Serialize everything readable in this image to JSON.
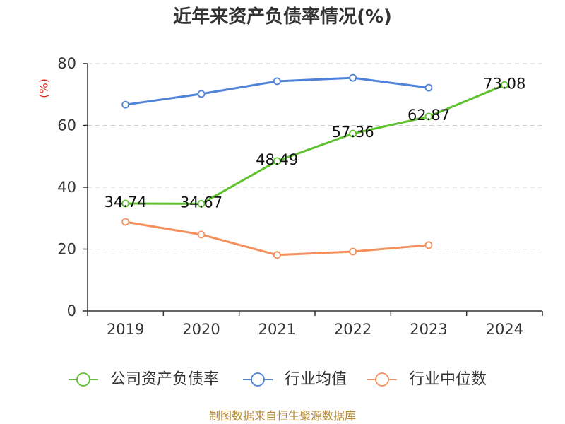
{
  "footer": "制图数据来自恒生聚源数据库",
  "colors": {
    "axis": "#333333",
    "grid": "#cccccc",
    "ylabel": "#e02b20",
    "footer": "#b38a35",
    "marker_fill": "#ffffff"
  },
  "chart_data": {
    "type": "line",
    "title": "近年来资产负债率情况(%)",
    "ylabel": "(%)",
    "categories": [
      "2019",
      "2020",
      "2021",
      "2022",
      "2023",
      "2024"
    ],
    "ylim": [
      0,
      80
    ],
    "yticks": [
      0,
      20,
      40,
      60,
      80
    ],
    "grid": true,
    "legend_position": "bottom",
    "series": [
      {
        "name": "公司资产负债率",
        "color": "#5ec22e",
        "data_labels": true,
        "values": [
          34.74,
          34.67,
          48.49,
          57.36,
          62.87,
          73.08
        ]
      },
      {
        "name": "行业均值",
        "color": "#4f82d9",
        "data_labels": false,
        "values": [
          66.7,
          70.2,
          74.3,
          75.4,
          72.2,
          null
        ]
      },
      {
        "name": "行业中位数",
        "color": "#f5905c",
        "data_labels": false,
        "values": [
          28.8,
          24.7,
          18.1,
          19.2,
          21.3,
          null
        ]
      }
    ]
  }
}
